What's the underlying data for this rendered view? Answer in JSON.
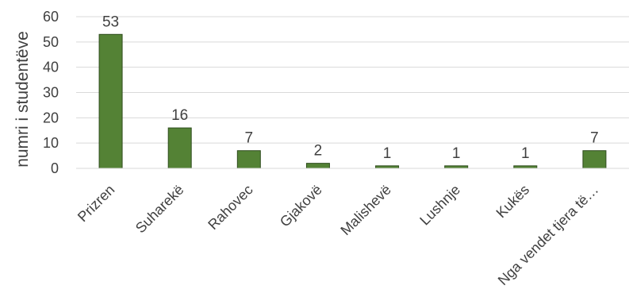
{
  "chart_data": {
    "type": "bar",
    "categories": [
      "Prizren",
      "Suharekë",
      "Rahovec",
      "Gjakovë",
      "Malishevë",
      "Lushnje",
      "Kukës",
      "Nga vendet tjera të…"
    ],
    "values": [
      53,
      16,
      7,
      2,
      1,
      1,
      1,
      7
    ],
    "title": "",
    "xlabel": "",
    "ylabel": "numri i studentëve",
    "ylim": [
      0,
      60
    ],
    "yticks": [
      0,
      10,
      20,
      30,
      40,
      50,
      60
    ],
    "data_labels": [
      "53",
      "16",
      "7",
      "2",
      "1",
      "1",
      "1",
      "7"
    ],
    "grid": true,
    "legend": "none",
    "bar_color": "#548235",
    "bar_edge_color": "#2f4d1e",
    "grid_color": "#d9d9d9"
  }
}
